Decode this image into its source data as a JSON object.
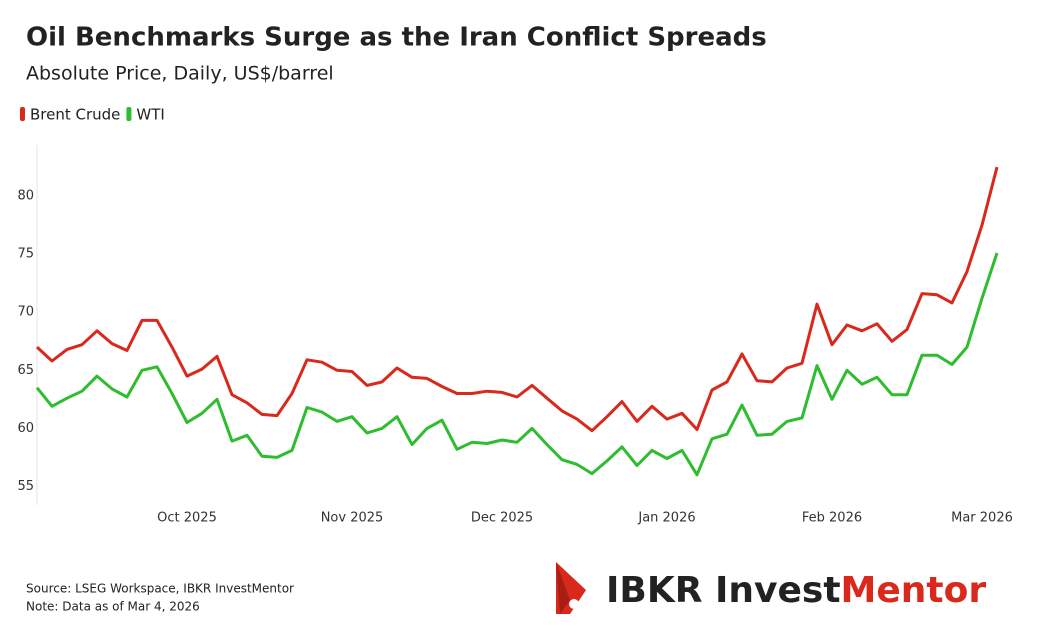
{
  "chart_data": {
    "type": "line",
    "title": "Oil Benchmarks Surge as the Iran Conflict Spreads",
    "subtitle": "Absolute Price, Daily, US$/barrel",
    "categories": [
      null,
      null,
      null,
      null,
      null,
      null,
      null,
      null,
      null,
      null,
      "Oct 2025",
      null,
      null,
      null,
      null,
      null,
      null,
      null,
      null,
      null,
      null,
      "Nov 2025",
      null,
      null,
      null,
      null,
      null,
      null,
      null,
      null,
      null,
      "Dec 2025",
      null,
      null,
      null,
      null,
      null,
      null,
      null,
      null,
      null,
      null,
      "Jan 2026",
      null,
      null,
      null,
      null,
      null,
      null,
      null,
      null,
      null,
      null,
      "Feb 2026",
      null,
      null,
      null,
      null,
      null,
      null,
      null,
      null,
      null,
      "Mar 2026",
      null
    ],
    "series": [
      {
        "name": "Brent Crude",
        "color": "#d9281c",
        "values": [
          67.0,
          65.8,
          66.8,
          67.2,
          68.4,
          67.3,
          66.7,
          69.3,
          69.3,
          67.0,
          64.5,
          65.1,
          66.2,
          62.9,
          62.2,
          61.2,
          61.1,
          63.0,
          65.9,
          65.7,
          65.0,
          64.9,
          63.7,
          64.0,
          65.2,
          64.4,
          64.3,
          63.6,
          63.0,
          63.0,
          63.2,
          63.1,
          62.7,
          63.7,
          62.6,
          61.5,
          60.8,
          59.8,
          61.0,
          62.3,
          60.6,
          61.9,
          60.8,
          61.3,
          59.9,
          63.3,
          64.0,
          66.4,
          64.1,
          64.0,
          65.2,
          65.6,
          70.7,
          67.2,
          68.9,
          68.4,
          69.0,
          67.5,
          68.5,
          71.6,
          71.5,
          70.8,
          73.5,
          77.5,
          82.5
        ]
      },
      {
        "name": "WTI",
        "color": "#2ebd2e",
        "values": [
          63.5,
          61.9,
          62.6,
          63.2,
          64.5,
          63.4,
          62.7,
          65.0,
          65.3,
          63.0,
          60.5,
          61.3,
          62.5,
          58.9,
          59.4,
          57.6,
          57.5,
          58.1,
          61.8,
          61.4,
          60.6,
          61.0,
          59.6,
          60.0,
          61.0,
          58.6,
          60.0,
          60.7,
          58.2,
          58.8,
          58.7,
          59.0,
          58.8,
          60.0,
          58.6,
          57.3,
          56.9,
          56.1,
          57.2,
          58.4,
          56.8,
          58.1,
          57.4,
          58.1,
          56.0,
          59.1,
          59.5,
          62.0,
          59.4,
          59.5,
          60.6,
          60.9,
          65.4,
          62.5,
          65.0,
          63.8,
          64.4,
          62.9,
          62.9,
          66.3,
          66.3,
          65.5,
          67.0,
          71.2,
          75.1
        ]
      }
    ],
    "ylim": [
      53.4,
      84.4
    ],
    "yticks": [
      55,
      60,
      65,
      70,
      75,
      80
    ],
    "grid": false,
    "legend": "top-left"
  },
  "footer": {
    "source": "Source: LSEG Workspace, IBKR InvestMentor",
    "note": "Note: Data as of Mar 4, 2026"
  },
  "logo": {
    "primary": "IBKR Invest",
    "accent": "Mentor"
  }
}
